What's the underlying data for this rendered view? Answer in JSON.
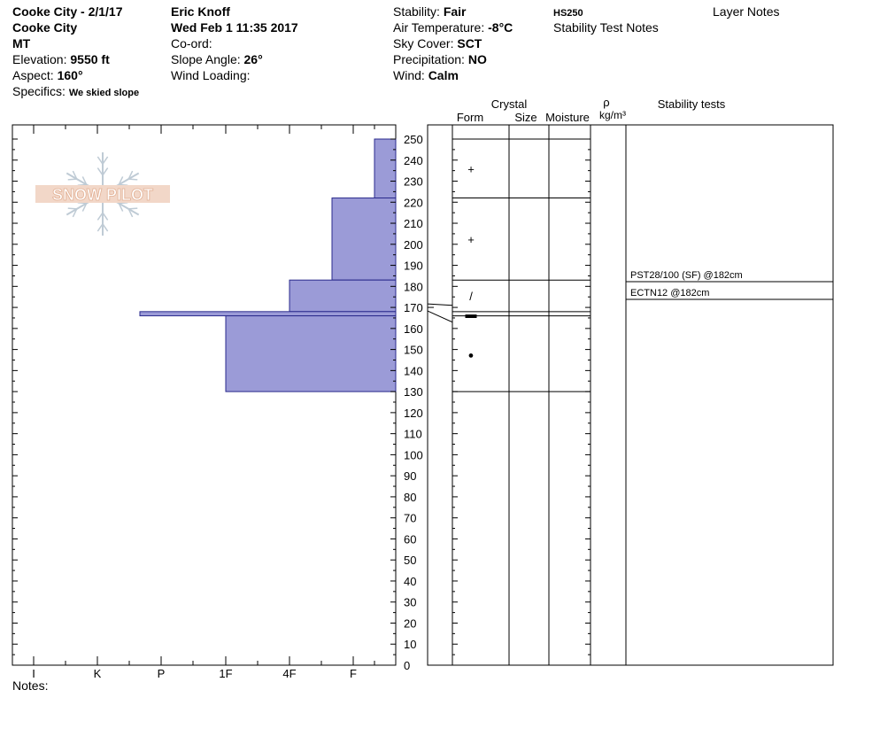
{
  "header": {
    "col1": {
      "title": "Cooke City - 2/1/17",
      "location": "Cooke City",
      "state": "MT",
      "elevation_label": "Elevation:",
      "elevation_value": "9550 ft",
      "aspect_label": "Aspect:",
      "aspect_value": "160°",
      "specifics_label": "Specifics:",
      "specifics_value": "We skied slope"
    },
    "col2": {
      "observer": "Eric Knoff",
      "datetime": "Wed Feb 1 11:35 2017",
      "coord_label": "Co-ord:",
      "slope_label": "Slope Angle:",
      "slope_value": "26°",
      "wind_loading_label": "Wind Loading:"
    },
    "col3": {
      "stability_label": "Stability:",
      "stability_value": "Fair",
      "air_temp_label": "Air Temperature:",
      "air_temp_value": "-8°C",
      "sky_label": "Sky Cover:",
      "sky_value": "SCT",
      "precip_label": "Precipitation:",
      "precip_value": "NO",
      "wind_label": "Wind:",
      "wind_value": "Calm"
    },
    "hs": "HS250",
    "stability_notes": "Stability Test Notes",
    "layer_notes": "Layer Notes"
  },
  "logo_text": "SNOW PILOT",
  "notes_label": "Notes:",
  "columns": {
    "crystal": "Crystal",
    "form": "Form",
    "size": "Size",
    "moisture": "Moisture",
    "rho": "ρ",
    "density_unit": "kg/m³",
    "stability_tests": "Stability tests"
  },
  "stability_tests": [
    {
      "text": "PST28/100 (SF) @182cm",
      "depth": 182
    },
    {
      "text": "ECTN12 @182cm",
      "depth": 182
    }
  ],
  "chart_data": {
    "type": "bar",
    "title": "",
    "y_axis": {
      "min": 0,
      "max": 250,
      "tick_step": 10
    },
    "hardness_scale": [
      "I",
      "K",
      "P",
      "1F",
      "4F",
      "F"
    ],
    "layers": [
      {
        "top": 250,
        "bottom": 222,
        "hardness": "F-",
        "form": "+"
      },
      {
        "top": 222,
        "bottom": 183,
        "hardness": "F+",
        "form": "+"
      },
      {
        "top": 183,
        "bottom": 168,
        "hardness": "4F",
        "form": "/"
      },
      {
        "top": 168,
        "bottom": 166,
        "hardness": "P+",
        "form": "▬"
      },
      {
        "top": 166,
        "bottom": 130,
        "hardness": "1F",
        "form": "●"
      },
      {
        "top": 130,
        "bottom": 0,
        "hardness": null,
        "form": ""
      }
    ],
    "colors": {
      "fill": "#9b9bd7",
      "stroke": "#2a2a8c"
    }
  }
}
